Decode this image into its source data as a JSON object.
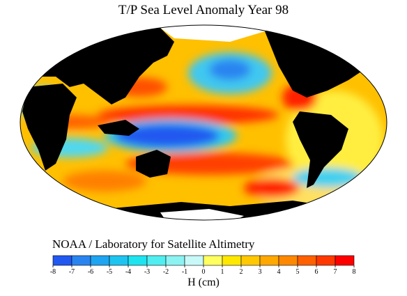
{
  "title": "T/P Sea Level Anomaly Year 98",
  "credit": "NOAA / Laboratory for Satellite Altimetry",
  "colorbar": {
    "ticks": [
      -8,
      -7,
      -6,
      -5,
      -4,
      -3,
      -2,
      -1,
      0,
      1,
      2,
      3,
      4,
      5,
      6,
      7,
      8
    ],
    "colors": [
      "#2058f0",
      "#2a84f0",
      "#1ea4f0",
      "#1ec4f0",
      "#1ee4f0",
      "#50eef0",
      "#8cf2f2",
      "#c8f8f8",
      "#ffff60",
      "#ffe800",
      "#ffc800",
      "#ffa800",
      "#ff8800",
      "#ff6000",
      "#ff3800",
      "#ff0000"
    ],
    "label": "H (cm)"
  }
}
